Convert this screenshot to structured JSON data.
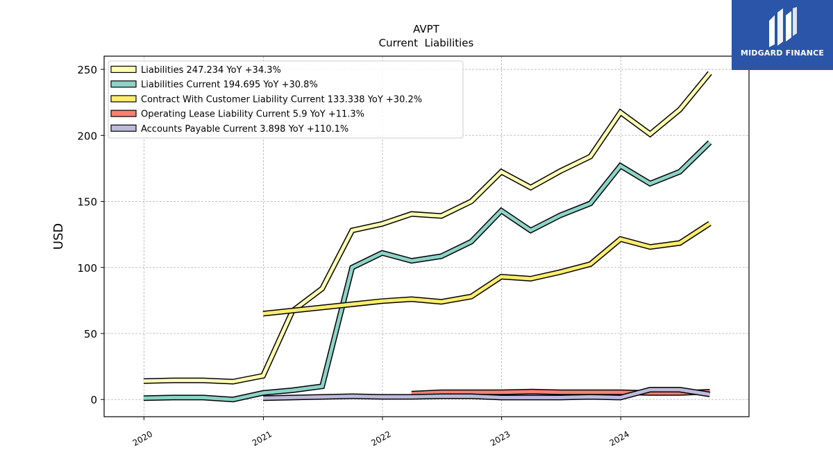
{
  "chart_data": {
    "type": "line",
    "title": "AVPT",
    "subtitle": "Current  Liabilities",
    "ylabel": "USD",
    "xlabel": "",
    "xlim": [
      "2019-09-01",
      "2025-01-28"
    ],
    "ylim": [
      -13,
      260
    ],
    "yticks": [
      0,
      50,
      100,
      150,
      200,
      250
    ],
    "xticks": [
      {
        "label": "2020",
        "date": "2020-01-01"
      },
      {
        "label": "2021",
        "date": "2021-01-01"
      },
      {
        "label": "2022",
        "date": "2022-01-01"
      },
      {
        "label": "2023",
        "date": "2023-01-01"
      },
      {
        "label": "2024",
        "date": "2024-01-01"
      }
    ],
    "grid": true,
    "legend_position": "top-left",
    "series": [
      {
        "name": "Liabilities",
        "legend_label": "Liabilities  247.234 YoY +34.3%",
        "color": "#ffffb3",
        "points": [
          [
            "2019-12-31",
            14
          ],
          [
            "2020-03-31",
            14.5
          ],
          [
            "2020-06-30",
            14.5
          ],
          [
            "2020-09-30",
            13.5
          ],
          [
            "2020-12-31",
            18
          ],
          [
            "2021-03-31",
            67
          ],
          [
            "2021-06-30",
            84
          ],
          [
            "2021-09-30",
            128
          ],
          [
            "2021-12-31",
            133
          ],
          [
            "2022-03-31",
            140.5
          ],
          [
            "2022-06-30",
            139
          ],
          [
            "2022-09-30",
            150
          ],
          [
            "2022-12-31",
            172.5
          ],
          [
            "2023-03-31",
            160.5
          ],
          [
            "2023-06-30",
            173
          ],
          [
            "2023-09-30",
            184
          ],
          [
            "2023-12-31",
            217.5
          ],
          [
            "2024-03-31",
            201
          ],
          [
            "2024-06-30",
            219.5
          ],
          [
            "2024-09-30",
            247.234
          ]
        ]
      },
      {
        "name": "Liabilities Current",
        "legend_label": "Liabilities Current  194.695 YoY +30.8%",
        "color": "#8dd3c7",
        "points": [
          [
            "2019-12-31",
            1
          ],
          [
            "2020-03-31",
            1.5
          ],
          [
            "2020-06-30",
            1.5
          ],
          [
            "2020-09-30",
            0
          ],
          [
            "2020-12-31",
            5
          ],
          [
            "2021-03-31",
            7
          ],
          [
            "2021-06-30",
            10
          ],
          [
            "2021-09-30",
            100
          ],
          [
            "2021-12-31",
            111
          ],
          [
            "2022-03-31",
            105
          ],
          [
            "2022-06-30",
            108.5
          ],
          [
            "2022-09-30",
            119.5
          ],
          [
            "2022-12-31",
            143
          ],
          [
            "2023-03-31",
            128
          ],
          [
            "2023-06-30",
            139.5
          ],
          [
            "2023-09-30",
            148.5
          ],
          [
            "2023-12-31",
            177
          ],
          [
            "2024-03-31",
            163.5
          ],
          [
            "2024-06-30",
            172.5
          ],
          [
            "2024-09-30",
            194.695
          ]
        ]
      },
      {
        "name": "Contract With Customer Liability Current",
        "legend_label": "Contract With Customer Liability Current  133.338 YoY +30.2%",
        "color": "#ffed6f",
        "points": [
          [
            "2020-12-31",
            65
          ],
          [
            "2021-12-31",
            74.5
          ],
          [
            "2022-03-31",
            76
          ],
          [
            "2022-06-30",
            74
          ],
          [
            "2022-09-30",
            78
          ],
          [
            "2022-12-31",
            93
          ],
          [
            "2023-03-31",
            91.5
          ],
          [
            "2023-06-30",
            96.5
          ],
          [
            "2023-09-30",
            102.5
          ],
          [
            "2023-12-31",
            121.5
          ],
          [
            "2024-03-31",
            115.5
          ],
          [
            "2024-06-30",
            118.5
          ],
          [
            "2024-09-30",
            133.338
          ]
        ]
      },
      {
        "name": "Operating Lease Liability Current",
        "legend_label": "Operating Lease Liability Current  5.9 YoY +11.3%",
        "color": "#fb8072",
        "points": [
          [
            "2022-03-31",
            4.5
          ],
          [
            "2022-06-30",
            5.5
          ],
          [
            "2022-09-30",
            5.5
          ],
          [
            "2022-12-31",
            5.5
          ],
          [
            "2023-03-31",
            6
          ],
          [
            "2023-06-30",
            5.5
          ],
          [
            "2023-09-30",
            5.5
          ],
          [
            "2023-12-31",
            5.5
          ],
          [
            "2024-03-31",
            5
          ],
          [
            "2024-06-30",
            5
          ],
          [
            "2024-09-30",
            5.9
          ]
        ]
      },
      {
        "name": "Accounts Payable Current",
        "legend_label": "Accounts Payable Current  3.898 YoY +110.1%",
        "color": "#bebada",
        "points": [
          [
            "2020-12-31",
            1
          ],
          [
            "2021-09-30",
            2.5
          ],
          [
            "2021-12-31",
            2
          ],
          [
            "2022-03-31",
            2
          ],
          [
            "2022-06-30",
            2.5
          ],
          [
            "2022-09-30",
            2.5
          ],
          [
            "2022-12-31",
            1.5
          ],
          [
            "2023-03-31",
            1.5
          ],
          [
            "2023-06-30",
            1.5
          ],
          [
            "2023-09-30",
            2
          ],
          [
            "2023-12-31",
            1.5
          ],
          [
            "2024-03-31",
            7.5
          ],
          [
            "2024-06-30",
            7.5
          ],
          [
            "2024-09-30",
            3.898
          ]
        ]
      }
    ]
  },
  "logo": {
    "text": "MIDGARD FINANCE",
    "bg_color": "#2a55a8"
  }
}
